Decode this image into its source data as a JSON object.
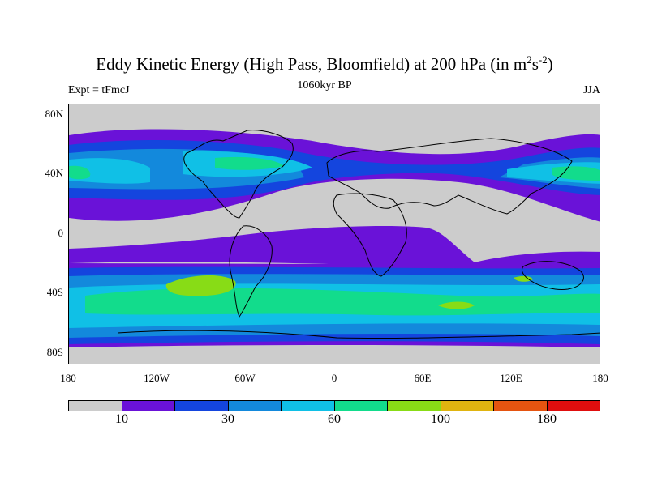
{
  "title": {
    "main": "Eddy Kinetic Energy (High Pass, Bloomfield) at 200 hPa (in m",
    "sup1": "2",
    "mid": "s",
    "sup2": "-2",
    "end": ")"
  },
  "subtitle_left": "Expt = tFmcJ",
  "subtitle_center": "1060kyr BP",
  "subtitle_right": "JJA",
  "y_ticks": [
    "80N",
    "40N",
    "0",
    "40S",
    "80S"
  ],
  "x_ticks": [
    "180",
    "120W",
    "60W",
    "0",
    "60E",
    "120E",
    "180"
  ],
  "colorbar": {
    "colors": [
      "#cccccc",
      "#6a12d8",
      "#1445de",
      "#1389dc",
      "#10c0e6",
      "#12dc8c",
      "#88dc16",
      "#e0b410",
      "#e55410",
      "#e00e0e"
    ],
    "labels": [
      "10",
      "30",
      "60",
      "100",
      "180"
    ]
  }
}
